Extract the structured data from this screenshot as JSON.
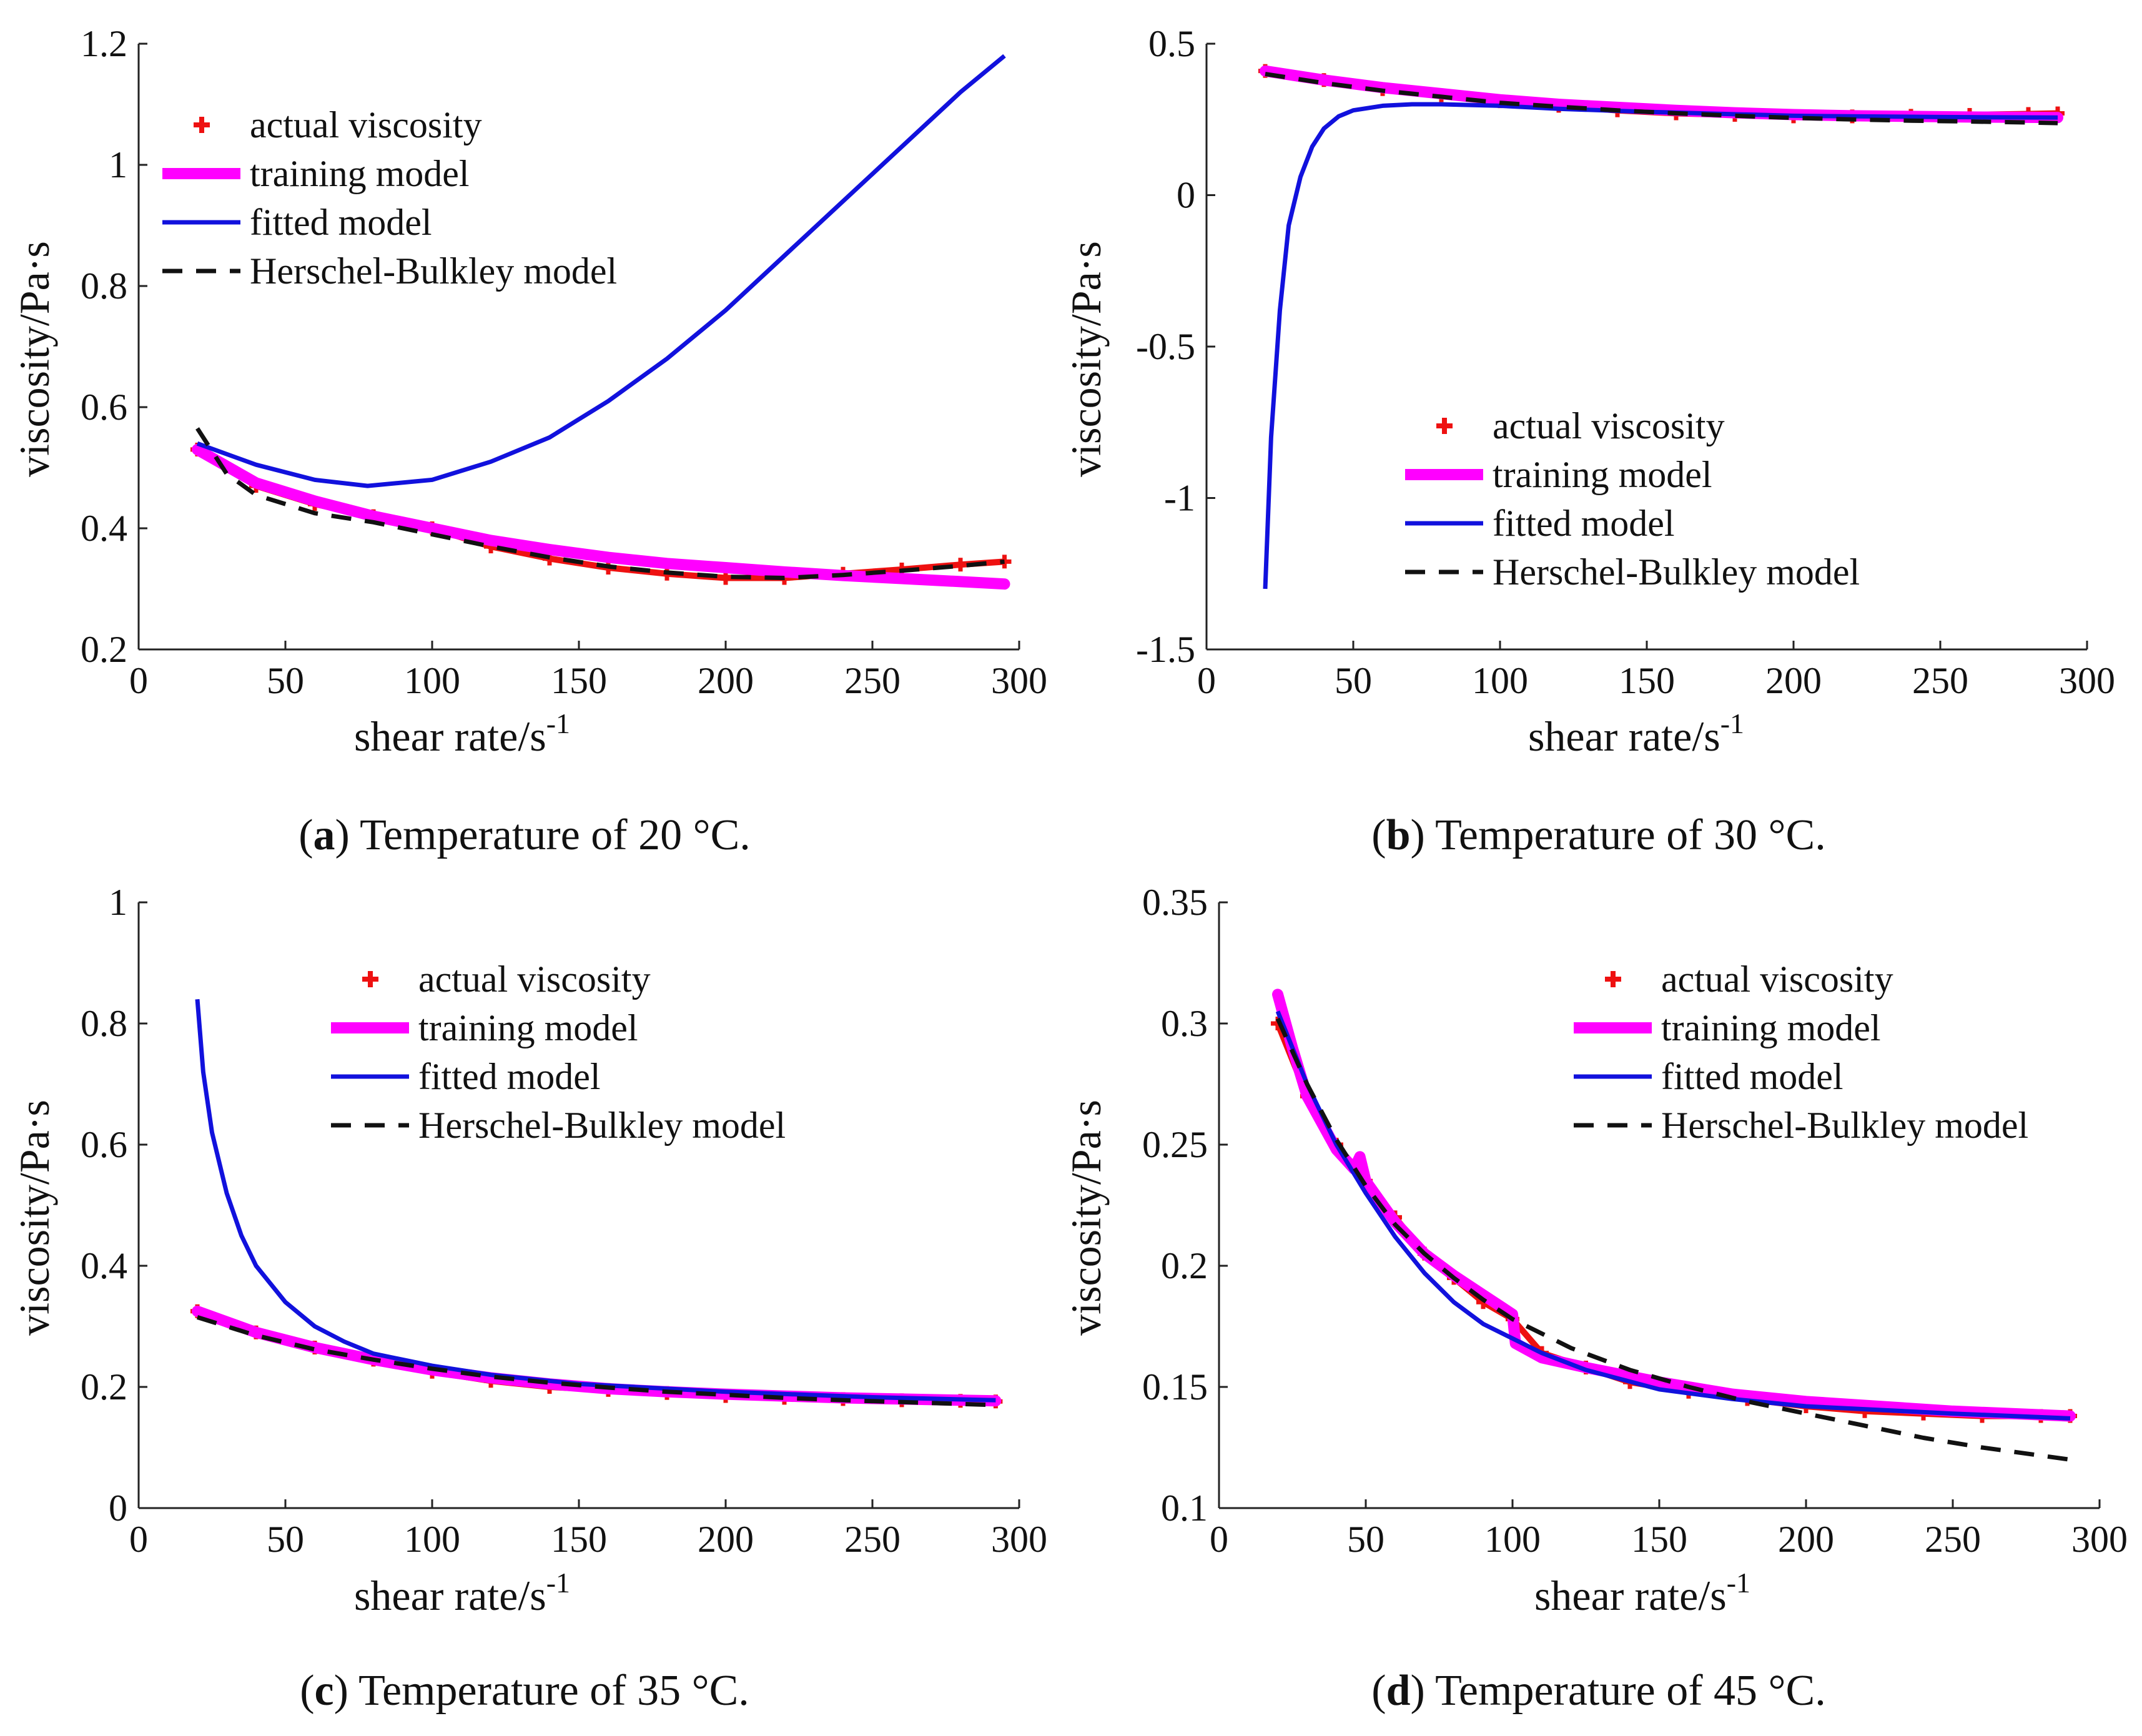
{
  "colors": {
    "actual": "#ee1111",
    "training": "#ff00ff",
    "fitted": "#1111dd",
    "herschel": "#111111"
  },
  "legend_labels": {
    "actual": "actual viscosity",
    "training": "training model",
    "fitted": "fitted model",
    "herschel": "Herschel-Bulkley model"
  },
  "captions": [
    {
      "letter": "a",
      "text": " Temperature of 20 °C."
    },
    {
      "letter": "b",
      "text": " Temperature of 30 °C."
    },
    {
      "letter": "c",
      "text": " Temperature of 35 °C."
    },
    {
      "letter": "d",
      "text": " Temperature of 45 °C."
    }
  ],
  "chart_data": [
    {
      "type": "line",
      "panel": "a",
      "xlabel": "shear rate/s",
      "xlabel_sup": "-1",
      "ylabel": "viscosity/Pa·s",
      "xlim": [
        0,
        300
      ],
      "ylim": [
        0.2,
        1.2
      ],
      "xticks": [
        0,
        50,
        100,
        150,
        200,
        250,
        300
      ],
      "xtick_labels": [
        "0",
        "50",
        "100",
        "150",
        "200",
        "250",
        "300"
      ],
      "yticks": [
        0.2,
        0.4,
        0.6,
        0.8,
        1.0,
        1.2
      ],
      "ytick_labels": [
        "0.2",
        "0.4",
        "0.6",
        "0.8",
        "1",
        "1.2"
      ],
      "legend_position": "top-left",
      "series": [
        {
          "name": "actual viscosity",
          "key": "actual",
          "style": "markers",
          "x": [
            20,
            40,
            60,
            80,
            100,
            120,
            140,
            160,
            180,
            200,
            220,
            240,
            260,
            280,
            295
          ],
          "y": [
            0.53,
            0.47,
            0.44,
            0.42,
            0.4,
            0.37,
            0.35,
            0.335,
            0.325,
            0.318,
            0.318,
            0.325,
            0.332,
            0.34,
            0.345
          ]
        },
        {
          "name": "training model",
          "key": "training",
          "style": "thick",
          "x": [
            20,
            40,
            60,
            80,
            100,
            120,
            140,
            160,
            180,
            200,
            220,
            240,
            260,
            280,
            295
          ],
          "y": [
            0.53,
            0.475,
            0.445,
            0.42,
            0.4,
            0.38,
            0.365,
            0.352,
            0.342,
            0.335,
            0.328,
            0.322,
            0.317,
            0.312,
            0.308
          ]
        },
        {
          "name": "fitted model",
          "key": "fitted",
          "style": "solid",
          "x": [
            20,
            40,
            60,
            78,
            100,
            120,
            140,
            160,
            180,
            200,
            220,
            240,
            260,
            280,
            295
          ],
          "y": [
            0.54,
            0.505,
            0.48,
            0.47,
            0.48,
            0.51,
            0.55,
            0.61,
            0.68,
            0.76,
            0.85,
            0.94,
            1.03,
            1.12,
            1.18
          ]
        },
        {
          "name": "Herschel-Bulkley model",
          "key": "herschel",
          "style": "dashed",
          "x": [
            20,
            30,
            40,
            60,
            80,
            100,
            120,
            140,
            160,
            180,
            200,
            220,
            240,
            260,
            280,
            295
          ],
          "y": [
            0.565,
            0.49,
            0.455,
            0.425,
            0.41,
            0.39,
            0.37,
            0.352,
            0.337,
            0.327,
            0.32,
            0.318,
            0.323,
            0.33,
            0.338,
            0.345
          ]
        }
      ]
    },
    {
      "type": "line",
      "panel": "b",
      "xlabel": "shear rate/s",
      "xlabel_sup": "-1",
      "ylabel": "viscosity/Pa·s",
      "xlim": [
        0,
        300
      ],
      "ylim": [
        -1.5,
        0.5
      ],
      "xticks": [
        0,
        50,
        100,
        150,
        200,
        250,
        300
      ],
      "xtick_labels": [
        "0",
        "50",
        "100",
        "150",
        "200",
        "250",
        "300"
      ],
      "yticks": [
        -1.5,
        -1.0,
        -0.5,
        0,
        0.5
      ],
      "ytick_labels": [
        "-1.5",
        "-1",
        "-0.5",
        "0",
        "0.5"
      ],
      "legend_position": "center-right",
      "series": [
        {
          "name": "actual viscosity",
          "key": "actual",
          "style": "markers",
          "x": [
            20,
            40,
            60,
            80,
            100,
            120,
            140,
            160,
            180,
            200,
            220,
            240,
            260,
            280,
            290
          ],
          "y": [
            0.41,
            0.38,
            0.35,
            0.33,
            0.31,
            0.295,
            0.28,
            0.27,
            0.265,
            0.26,
            0.26,
            0.262,
            0.265,
            0.268,
            0.27
          ]
        },
        {
          "name": "training model",
          "key": "training",
          "style": "thick",
          "x": [
            20,
            40,
            60,
            80,
            100,
            120,
            140,
            160,
            180,
            200,
            220,
            240,
            260,
            280,
            290
          ],
          "y": [
            0.41,
            0.38,
            0.355,
            0.335,
            0.315,
            0.3,
            0.29,
            0.28,
            0.272,
            0.266,
            0.262,
            0.26,
            0.258,
            0.257,
            0.256
          ]
        },
        {
          "name": "fitted model",
          "key": "fitted",
          "style": "solid",
          "x": [
            20,
            22,
            25,
            28,
            32,
            36,
            40,
            45,
            50,
            60,
            70,
            80,
            100,
            120,
            150,
            200,
            250,
            290
          ],
          "y": [
            -1.3,
            -0.8,
            -0.38,
            -0.1,
            0.06,
            0.16,
            0.22,
            0.26,
            0.28,
            0.295,
            0.3,
            0.3,
            0.295,
            0.285,
            0.275,
            0.262,
            0.258,
            0.256
          ]
        },
        {
          "name": "Herschel-Bulkley model",
          "key": "herschel",
          "style": "dashed",
          "x": [
            20,
            40,
            60,
            80,
            100,
            120,
            140,
            160,
            180,
            200,
            220,
            240,
            260,
            280,
            290
          ],
          "y": [
            0.4,
            0.37,
            0.345,
            0.325,
            0.305,
            0.292,
            0.28,
            0.27,
            0.262,
            0.255,
            0.25,
            0.246,
            0.243,
            0.24,
            0.238
          ]
        }
      ]
    },
    {
      "type": "line",
      "panel": "c",
      "xlabel": "shear rate/s",
      "xlabel_sup": "-1",
      "ylabel": "viscosity/Pa·s",
      "xlim": [
        0,
        300
      ],
      "ylim": [
        0,
        1
      ],
      "xticks": [
        0,
        50,
        100,
        150,
        200,
        250,
        300
      ],
      "xtick_labels": [
        "0",
        "50",
        "100",
        "150",
        "200",
        "250",
        "300"
      ],
      "yticks": [
        0,
        0.2,
        0.4,
        0.6,
        0.8,
        1.0
      ],
      "ytick_labels": [
        "0",
        "0.2",
        "0.4",
        "0.6",
        "0.8",
        "1"
      ],
      "legend_position": "top-right",
      "series": [
        {
          "name": "actual viscosity",
          "key": "actual",
          "style": "markers",
          "x": [
            20,
            40,
            60,
            80,
            100,
            120,
            140,
            160,
            180,
            200,
            220,
            240,
            260,
            280,
            292
          ],
          "y": [
            0.325,
            0.29,
            0.265,
            0.245,
            0.225,
            0.21,
            0.2,
            0.195,
            0.19,
            0.185,
            0.182,
            0.18,
            0.178,
            0.177,
            0.176
          ]
        },
        {
          "name": "training model",
          "key": "training",
          "style": "thick",
          "x": [
            20,
            40,
            60,
            80,
            100,
            120,
            140,
            160,
            180,
            200,
            220,
            240,
            260,
            280,
            292
          ],
          "y": [
            0.325,
            0.29,
            0.265,
            0.245,
            0.228,
            0.215,
            0.205,
            0.197,
            0.192,
            0.188,
            0.185,
            0.182,
            0.18,
            0.178,
            0.177
          ]
        },
        {
          "name": "fitted model",
          "key": "fitted",
          "style": "solid",
          "x": [
            20,
            22,
            25,
            30,
            35,
            40,
            50,
            60,
            70,
            80,
            100,
            120,
            150,
            200,
            250,
            292
          ],
          "y": [
            0.84,
            0.72,
            0.62,
            0.52,
            0.45,
            0.4,
            0.34,
            0.3,
            0.275,
            0.255,
            0.235,
            0.22,
            0.205,
            0.192,
            0.183,
            0.178
          ]
        },
        {
          "name": "Herschel-Bulkley model",
          "key": "herschel",
          "style": "dashed",
          "x": [
            20,
            40,
            60,
            80,
            100,
            120,
            140,
            160,
            180,
            200,
            220,
            240,
            260,
            280,
            292
          ],
          "y": [
            0.315,
            0.285,
            0.262,
            0.245,
            0.23,
            0.217,
            0.207,
            0.199,
            0.192,
            0.187,
            0.182,
            0.178,
            0.175,
            0.172,
            0.17
          ]
        }
      ]
    },
    {
      "type": "line",
      "panel": "d",
      "xlabel": "shear rate/s",
      "xlabel_sup": "-1",
      "ylabel": "viscosity/Pa·s",
      "xlim": [
        0,
        300
      ],
      "ylim": [
        0.1,
        0.35
      ],
      "xticks": [
        0,
        50,
        100,
        150,
        200,
        250,
        300
      ],
      "xtick_labels": [
        "0",
        "50",
        "100",
        "150",
        "200",
        "250",
        "300"
      ],
      "yticks": [
        0.1,
        0.15,
        0.2,
        0.25,
        0.3,
        0.35
      ],
      "ytick_labels": [
        "0.1",
        "0.15",
        "0.2",
        "0.25",
        "0.3",
        "0.35"
      ],
      "legend_position": "top-right",
      "series": [
        {
          "name": "actual viscosity",
          "key": "actual",
          "style": "markers",
          "x": [
            20,
            30,
            40,
            50,
            60,
            70,
            80,
            90,
            100,
            110,
            125,
            140,
            160,
            180,
            200,
            220,
            240,
            260,
            280,
            290
          ],
          "y": [
            0.3,
            0.27,
            0.25,
            0.235,
            0.22,
            0.205,
            0.195,
            0.185,
            0.178,
            0.164,
            0.158,
            0.152,
            0.148,
            0.145,
            0.142,
            0.14,
            0.139,
            0.138,
            0.138,
            0.138
          ]
        },
        {
          "name": "training model",
          "key": "training",
          "style": "thick",
          "x": [
            20,
            25,
            30,
            40,
            46,
            48,
            50,
            60,
            70,
            80,
            90,
            100,
            101,
            110,
            125,
            150,
            175,
            200,
            250,
            290
          ],
          "y": [
            0.312,
            0.29,
            0.27,
            0.248,
            0.24,
            0.245,
            0.235,
            0.218,
            0.205,
            0.196,
            0.188,
            0.18,
            0.168,
            0.162,
            0.158,
            0.152,
            0.147,
            0.144,
            0.14,
            0.138
          ]
        },
        {
          "name": "fitted model",
          "key": "fitted",
          "style": "solid",
          "x": [
            20,
            30,
            40,
            50,
            60,
            70,
            80,
            90,
            100,
            110,
            125,
            150,
            175,
            200,
            250,
            290
          ],
          "y": [
            0.305,
            0.275,
            0.25,
            0.23,
            0.212,
            0.197,
            0.185,
            0.176,
            0.17,
            0.164,
            0.157,
            0.149,
            0.145,
            0.142,
            0.139,
            0.137
          ]
        },
        {
          "name": "Herschel-Bulkley model",
          "key": "herschel",
          "style": "dashed",
          "x": [
            20,
            30,
            40,
            50,
            60,
            70,
            80,
            90,
            100,
            120,
            140,
            160,
            180,
            200,
            220,
            240,
            260,
            290
          ],
          "y": [
            0.302,
            0.275,
            0.252,
            0.233,
            0.217,
            0.205,
            0.195,
            0.186,
            0.178,
            0.166,
            0.157,
            0.15,
            0.144,
            0.139,
            0.134,
            0.129,
            0.125,
            0.12
          ]
        }
      ]
    }
  ]
}
